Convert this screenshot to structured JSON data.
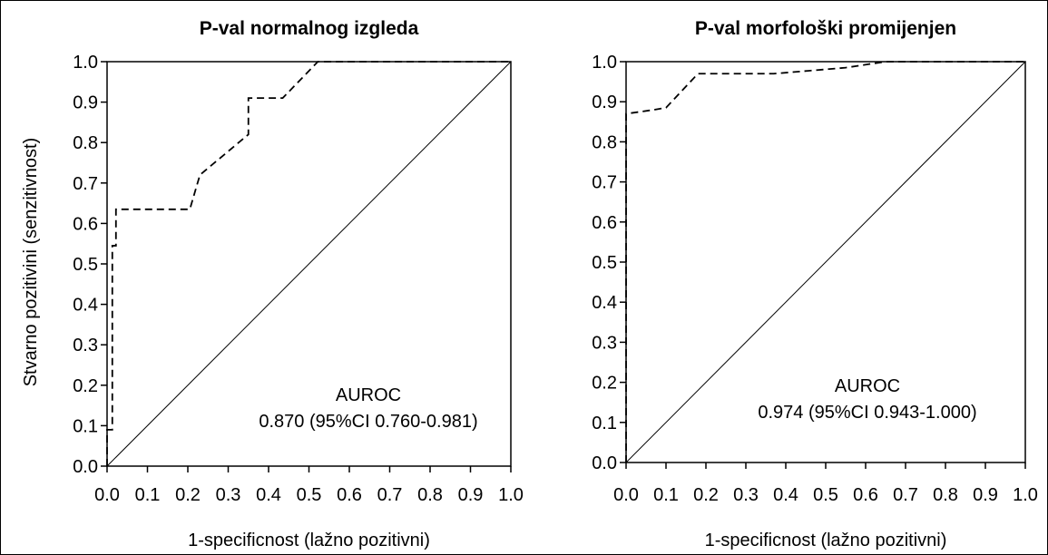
{
  "chart_data": [
    {
      "type": "line",
      "title": "P-val normalnog izgleda",
      "xlabel": "1-specificnost (lažno pozitivni)",
      "ylabel": "Stvarno pozitivini (senzitivnost)",
      "xlim": [
        0,
        1
      ],
      "ylim": [
        0,
        1
      ],
      "xticks": [
        "0.0",
        "0.1",
        "0.2",
        "0.3",
        "0.4",
        "0.5",
        "0.6",
        "0.7",
        "0.8",
        "0.9",
        "1.0"
      ],
      "yticks": [
        "0.0",
        "0.1",
        "0.2",
        "0.3",
        "0.4",
        "0.5",
        "0.6",
        "0.7",
        "0.8",
        "0.9",
        "1.0"
      ],
      "grid": false,
      "series": [
        {
          "style": "dashed",
          "x": [
            0.0,
            0.0,
            0.013,
            0.013,
            0.022,
            0.022,
            0.205,
            0.23,
            0.35,
            0.35,
            0.435,
            0.522,
            1.0
          ],
          "y": [
            0.0,
            0.09,
            0.09,
            0.545,
            0.545,
            0.635,
            0.635,
            0.72,
            0.82,
            0.91,
            0.91,
            1.0,
            1.0
          ]
        },
        {
          "style": "solid",
          "x": [
            0,
            1
          ],
          "y": [
            0,
            1
          ]
        }
      ],
      "annotation": {
        "line1": "AUROC",
        "line2": "0.870 (95%CI 0.760-0.981)"
      }
    },
    {
      "type": "line",
      "title": "P-val morfološki promijenjen",
      "xlabel": "1-specificnost (lažno pozitivni)",
      "ylabel": "",
      "xlim": [
        0,
        1
      ],
      "ylim": [
        0,
        1
      ],
      "xticks": [
        "0.0",
        "0.1",
        "0.2",
        "0.3",
        "0.4",
        "0.5",
        "0.6",
        "0.7",
        "0.8",
        "0.9",
        "1.0"
      ],
      "yticks": [
        "0.0",
        "0.1",
        "0.2",
        "0.3",
        "0.4",
        "0.5",
        "0.6",
        "0.7",
        "0.8",
        "0.9",
        "1.0"
      ],
      "grid": false,
      "series": [
        {
          "style": "dashed",
          "x": [
            0.0,
            0.0,
            0.07,
            0.1,
            0.18,
            0.37,
            0.55,
            0.65,
            1.0
          ],
          "y": [
            0.0,
            0.87,
            0.88,
            0.885,
            0.97,
            0.97,
            0.985,
            1.0,
            1.0
          ]
        },
        {
          "style": "solid",
          "x": [
            0,
            1
          ],
          "y": [
            0,
            1
          ]
        }
      ],
      "annotation": {
        "line1": "AUROC",
        "line2": "0.974 (95%CI 0.943-1.000)"
      }
    }
  ]
}
